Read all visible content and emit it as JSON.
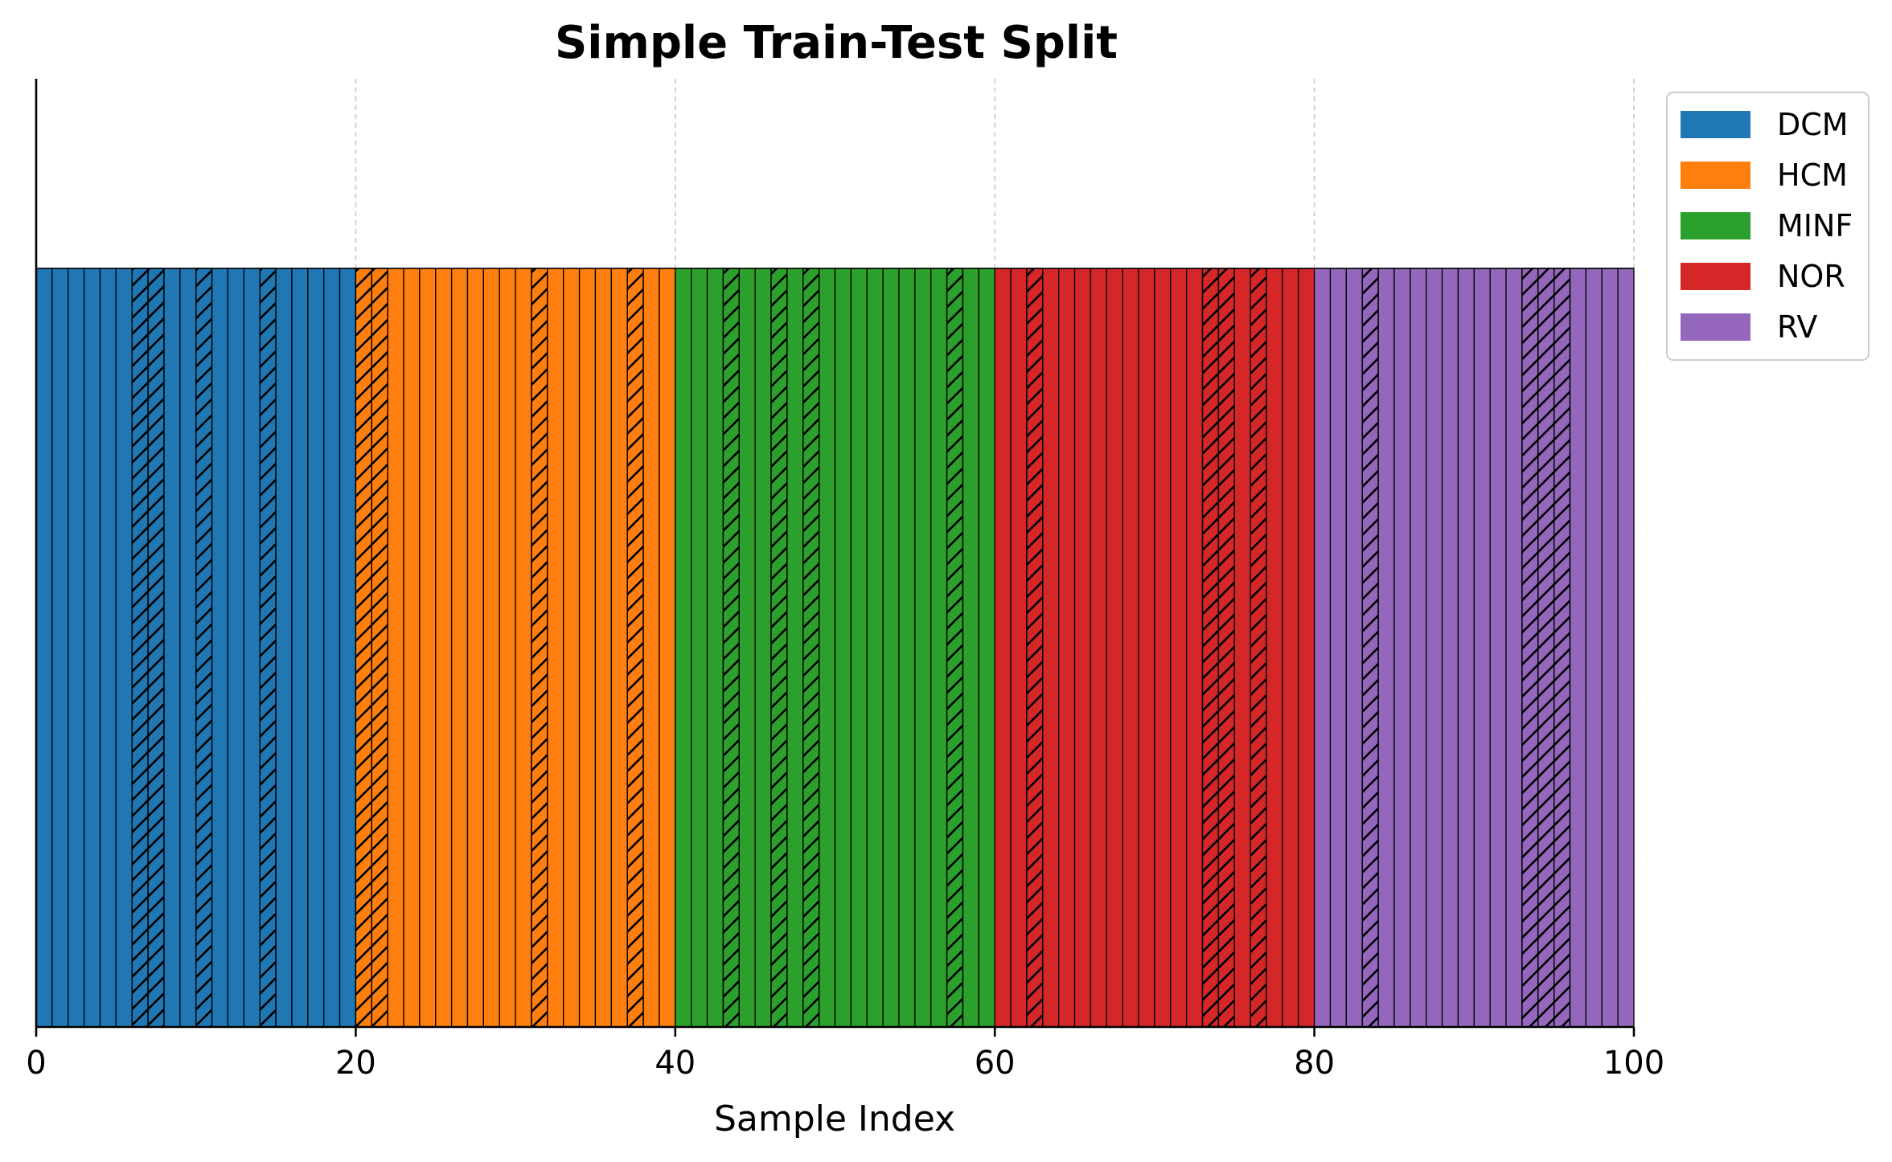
{
  "chart_data": {
    "type": "bar",
    "title": "Simple Train-Test Split",
    "xlabel": "Sample Index",
    "ylabel": "",
    "xlim": [
      0,
      100
    ],
    "xticks": [
      "0",
      "20",
      "40",
      "60",
      "80",
      "100"
    ],
    "grid": "x dashed",
    "legend_position": "upper right, outside plot",
    "classes": [
      {
        "name": "DCM",
        "range": [
          0,
          20
        ],
        "color": "#1f77b4"
      },
      {
        "name": "HCM",
        "range": [
          20,
          40
        ],
        "color": "#ff7f0e"
      },
      {
        "name": "MINF",
        "range": [
          40,
          60
        ],
        "color": "#2ca02c"
      },
      {
        "name": "NOR",
        "range": [
          60,
          80
        ],
        "color": "#d62728"
      },
      {
        "name": "RV",
        "range": [
          80,
          100
        ],
        "color": "#9467bd"
      }
    ],
    "test_indices": [
      6,
      7,
      10,
      14,
      20,
      21,
      31,
      37,
      43,
      46,
      48,
      57,
      62,
      73,
      74,
      76,
      83,
      93,
      94,
      95
    ],
    "test_marker": "hatched"
  }
}
